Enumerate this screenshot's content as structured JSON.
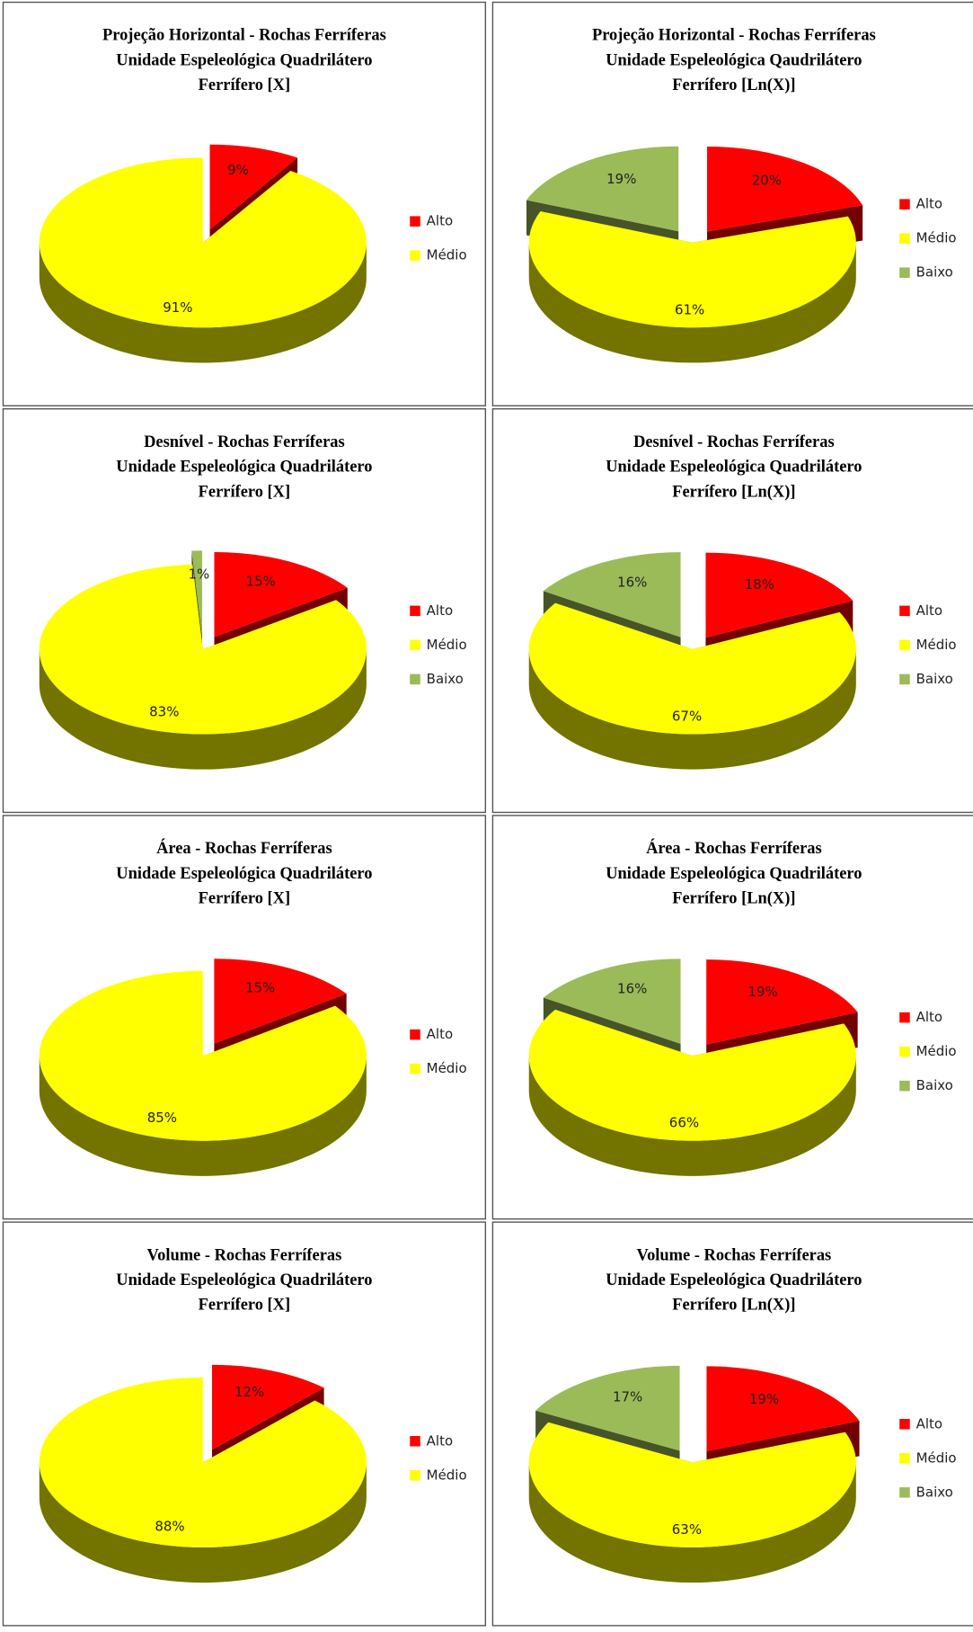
{
  "chart_data": [
    {
      "type": "pie",
      "title": [
        "Projeção Horizontal - Rochas Ferríferas",
        "Unidade Espeleológica Quadrilátero",
        "Ferrífero [X]"
      ],
      "categories": [
        "Alto",
        "Médio"
      ],
      "values": [
        9,
        91
      ],
      "value_labels": [
        "9%",
        "91%"
      ],
      "colors": [
        "#ff0000",
        "#ffff00"
      ],
      "legend": "right"
    },
    {
      "type": "pie",
      "title": [
        "Projeção Horizontal - Rochas Ferríferas",
        "Unidade Espeleológica Qaudrilátero",
        "Ferrífero [Ln(X)]"
      ],
      "categories": [
        "Alto",
        "Médio",
        "Baixo"
      ],
      "values": [
        20,
        61,
        19
      ],
      "value_labels": [
        "20%",
        "61%",
        "19%"
      ],
      "colors": [
        "#ff0000",
        "#ffff00",
        "#9bbb59"
      ],
      "legend": "right"
    },
    {
      "type": "pie",
      "title": [
        "Desnível - Rochas Ferríferas",
        "Unidade Espeleológica Quadrilátero",
        "Ferrífero [X]"
      ],
      "categories": [
        "Alto",
        "Médio",
        "Baixo"
      ],
      "values": [
        15,
        83,
        1
      ],
      "value_labels": [
        "15%",
        "83%",
        "1%"
      ],
      "colors": [
        "#ff0000",
        "#ffff00",
        "#9bbb59"
      ],
      "legend": "right"
    },
    {
      "type": "pie",
      "title": [
        "Desnível - Rochas Ferríferas",
        "Unidade Espeleológica Quadrilátero",
        "Ferrífero [Ln(X)]"
      ],
      "categories": [
        "Alto",
        "Médio",
        "Baixo"
      ],
      "values": [
        18,
        67,
        16
      ],
      "value_labels": [
        "18%",
        "67%",
        "16%"
      ],
      "colors": [
        "#ff0000",
        "#ffff00",
        "#9bbb59"
      ],
      "legend": "right"
    },
    {
      "type": "pie",
      "title": [
        "Área - Rochas Ferríferas",
        "Unidade Espeleológica Quadrilátero",
        "Ferrífero [X]"
      ],
      "categories": [
        "Alto",
        "Médio"
      ],
      "values": [
        15,
        85
      ],
      "value_labels": [
        "15%",
        "85%"
      ],
      "colors": [
        "#ff0000",
        "#ffff00"
      ],
      "legend": "right"
    },
    {
      "type": "pie",
      "title": [
        "Área - Rochas Ferríferas",
        "Unidade Espeleológica Quadrilátero",
        "Ferrífero [Ln(X)]"
      ],
      "categories": [
        "Alto",
        "Médio",
        "Baixo"
      ],
      "values": [
        19,
        66,
        16
      ],
      "value_labels": [
        "19%",
        "66%",
        "16%"
      ],
      "colors": [
        "#ff0000",
        "#ffff00",
        "#9bbb59"
      ],
      "legend": "right"
    },
    {
      "type": "pie",
      "title": [
        "Volume - Rochas Ferríferas",
        "Unidade Espeleológica Quadrilátero",
        "Ferrífero [X]"
      ],
      "categories": [
        "Alto",
        "Médio"
      ],
      "values": [
        12,
        88
      ],
      "value_labels": [
        "12%",
        "88%"
      ],
      "colors": [
        "#ff0000",
        "#ffff00"
      ],
      "legend": "right"
    },
    {
      "type": "pie",
      "title": [
        "Volume - Rochas Ferríferas",
        "Unidade Espeleológica Quadrilátero",
        "Ferrífero [Ln(X)]"
      ],
      "categories": [
        "Alto",
        "Médio",
        "Baixo"
      ],
      "values": [
        19,
        63,
        17
      ],
      "value_labels": [
        "19%",
        "63%",
        "17%"
      ],
      "colors": [
        "#ff0000",
        "#ffff00",
        "#9bbb59"
      ],
      "legend": "right"
    }
  ]
}
